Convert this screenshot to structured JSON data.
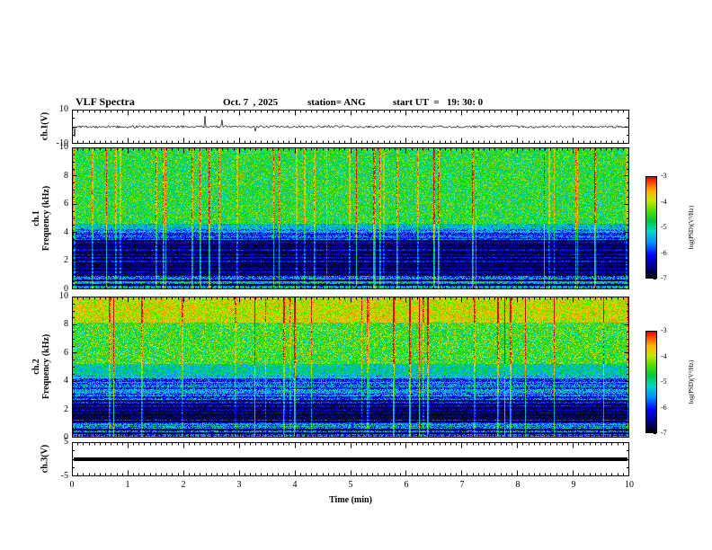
{
  "header": {
    "title": "VLF Spectra",
    "date": "Oct. 7  , 2025",
    "station": "station= ANG",
    "start_ut": "start UT  =   19: 30: 0"
  },
  "x_axis": {
    "label": "Time  (min)",
    "min": 0,
    "max": 10,
    "tick_labels": [
      "0",
      "1",
      "2",
      "3",
      "4",
      "5",
      "6",
      "7",
      "8",
      "9",
      "10"
    ],
    "minor_per_major": 10
  },
  "panels": {
    "ch1_voltage": {
      "ylabel": "ch.1(V)",
      "ymin": -10,
      "ymax": 10,
      "tick_labels": [
        "10",
        "-10"
      ]
    },
    "ch1_spectrogram": {
      "ylabel_line1": "ch.1",
      "ylabel_line2": "Frequency (kHz)",
      "ymin": 0,
      "ymax": 10,
      "tick_labels": [
        "0",
        "2",
        "4",
        "6",
        "8",
        "10"
      ]
    },
    "ch2_spectrogram": {
      "ylabel_line1": "ch.2",
      "ylabel_line2": "Frequency (kHz)",
      "ymin": 0,
      "ymax": 10,
      "tick_labels": [
        "0",
        "2",
        "4",
        "6",
        "8",
        "10"
      ]
    },
    "ch3_voltage": {
      "ylabel": "ch.3(V)",
      "ymin": -5,
      "ymax": 5,
      "tick_labels": [
        "5",
        "-5"
      ]
    }
  },
  "colorbar": {
    "label": "log(PSD)(V²/Hz)",
    "tick_labels": [
      "-3",
      "-4",
      "-5",
      "-6",
      "-7"
    ],
    "vmin": -7,
    "vmax": -3,
    "stops": [
      {
        "v": -7.0,
        "c": "#000000"
      },
      {
        "v": -6.6,
        "c": "#000080"
      },
      {
        "v": -6.1,
        "c": "#0000ff"
      },
      {
        "v": -5.6,
        "c": "#0090ff"
      },
      {
        "v": -5.15,
        "c": "#00d8c0"
      },
      {
        "v": -4.75,
        "c": "#00c840"
      },
      {
        "v": -4.35,
        "c": "#50dc00"
      },
      {
        "v": -3.95,
        "c": "#c8e800"
      },
      {
        "v": -3.55,
        "c": "#ffb000"
      },
      {
        "v": -3.2,
        "c": "#ff4000"
      },
      {
        "v": -3.0,
        "c": "#e00000"
      }
    ]
  },
  "chart_data": [
    {
      "type": "line",
      "panel": "ch.1(V) waveform",
      "x_range_min": [
        0,
        10
      ],
      "y_range_v": [
        -10,
        10
      ],
      "description": "dense noise trace centred on 0 V with sparse impulsive spikes reaching about ±8 V",
      "noise_amp_v": 0.7,
      "spike_probability": 0.012,
      "spike_amp_v": [
        2,
        9
      ]
    },
    {
      "type": "heatmap",
      "panel": "ch.1 VLF spectrogram",
      "x_range_min": [
        0,
        10
      ],
      "y_range_khz": [
        0,
        10
      ],
      "z_range_log_psd": [
        -7,
        -3
      ],
      "bands": [
        {
          "f_khz": [
            4.6,
            10.0
          ],
          "mean": -4.6,
          "spread": 0.55
        },
        {
          "f_khz": [
            4.0,
            4.6
          ],
          "mean": -5.3,
          "spread": 0.5
        },
        {
          "f_khz": [
            3.4,
            4.0
          ],
          "mean": -6.0,
          "spread": 0.5
        },
        {
          "f_khz": [
            0.9,
            3.4
          ],
          "mean": -6.45,
          "spread": 0.45
        },
        {
          "f_khz": [
            0.0,
            0.9
          ],
          "mean": -5.5,
          "spread": 0.7
        }
      ],
      "dark_lines_khz": [
        0.3,
        0.6,
        1.05,
        1.3,
        1.55,
        1.8,
        2.05,
        2.3,
        2.6,
        2.9,
        3.15,
        3.4
      ],
      "dark_line_width_khz": 0.07,
      "stripe": {
        "below_khz": 4.3,
        "amp": 0.9
      },
      "streaks": {
        "probability": 0.045,
        "boost": [
          0.6,
          1.7
        ]
      },
      "description": "green/yellow background above ~4.5 kHz with red broadband sferic streaks; blue/dark below 4 kHz with black horizontal interference lines"
    },
    {
      "type": "heatmap",
      "panel": "ch.2 VLF spectrogram",
      "x_range_min": [
        0,
        10
      ],
      "y_range_khz": [
        0,
        10
      ],
      "z_range_log_psd": [
        -7,
        -3
      ],
      "bands": [
        {
          "f_khz": [
            8.2,
            10.0
          ],
          "mean": -3.95,
          "spread": 0.5
        },
        {
          "f_khz": [
            5.2,
            8.2
          ],
          "mean": -4.5,
          "spread": 0.6
        },
        {
          "f_khz": [
            4.2,
            5.2
          ],
          "mean": -5.1,
          "spread": 0.55
        },
        {
          "f_khz": [
            2.6,
            4.2
          ],
          "mean": -5.8,
          "spread": 0.6
        },
        {
          "f_khz": [
            1.0,
            2.6
          ],
          "mean": -6.4,
          "spread": 0.5
        },
        {
          "f_khz": [
            0.0,
            1.0
          ],
          "mean": -5.7,
          "spread": 0.7
        }
      ],
      "dark_lines_khz": [
        0.3,
        0.55,
        1.1,
        1.35,
        1.6,
        1.85,
        2.1,
        2.35,
        2.6
      ],
      "dark_line_width_khz": 0.07,
      "stripe": {
        "below_khz": 4.4,
        "amp": 0.9
      },
      "streaks": {
        "probability": 0.05,
        "boost": [
          0.6,
          1.8
        ]
      },
      "description": "strong red/orange band 8-10 kHz, green mid band with red streaks, blue/dark below ~4 kHz with black horizontal lines"
    },
    {
      "type": "line",
      "panel": "ch.3(V) waveform",
      "x_range_min": [
        0,
        10
      ],
      "y_range_v": [
        -5,
        5
      ],
      "value_v": 0,
      "description": "flat thick black line at 0 V (no signal)"
    }
  ]
}
